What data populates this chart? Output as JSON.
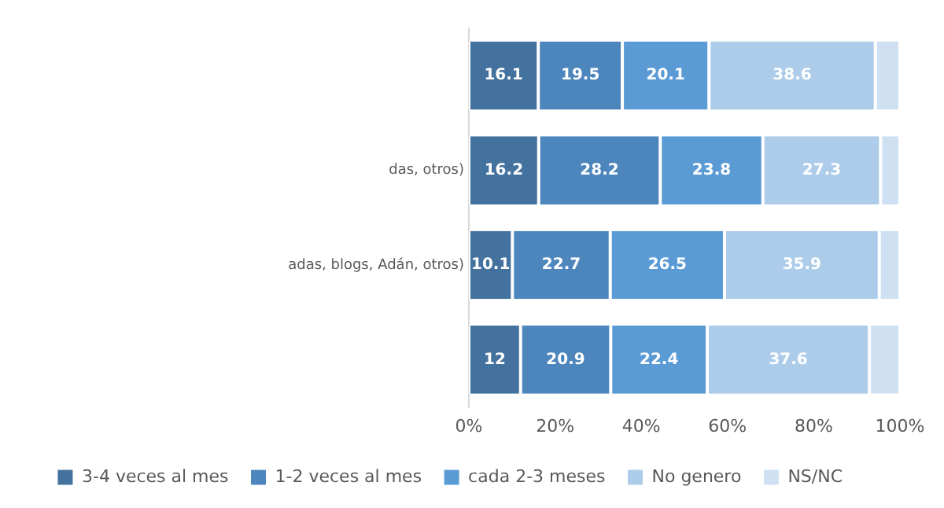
{
  "chart_data": {
    "type": "bar",
    "orientation": "horizontal",
    "stacked": true,
    "categories": [
      null,
      "das, otros)",
      "adas, blogs, Adán, otros)",
      null
    ],
    "series": [
      {
        "name": "3-4 veces al mes",
        "color": "#44729f",
        "values": [
          16.1,
          16.2,
          10.1,
          12
        ],
        "value_labels": [
          "16.1",
          "16.2",
          "10.1",
          "12"
        ]
      },
      {
        "name": "1-2 veces al mes",
        "color": "#4d86bd",
        "values": [
          19.5,
          28.2,
          22.7,
          20.9
        ],
        "value_labels": [
          "19.5",
          "28.2",
          "22.7",
          "20.9"
        ]
      },
      {
        "name": "cada 2-3 meses",
        "color": "#5b9bd5",
        "values": [
          20.1,
          23.8,
          26.5,
          22.4
        ],
        "value_labels": [
          "20.1",
          "23.8",
          "26.5",
          "22.4"
        ]
      },
      {
        "name": "No genero",
        "color": "#acccea",
        "values": [
          38.6,
          27.3,
          35.9,
          37.6
        ],
        "value_labels": [
          "38.6",
          "27.3",
          "35.9",
          "37.6"
        ]
      },
      {
        "name": "NS/NC",
        "color": "#cfe0f3",
        "values": [
          5.7,
          4.5,
          4.8,
          7.1
        ]
      }
    ],
    "xlim": [
      0,
      100
    ],
    "xticks": [
      {
        "value": 0,
        "label": "0%"
      },
      {
        "value": 20,
        "label": "20%"
      },
      {
        "value": 40,
        "label": "40%"
      },
      {
        "value": 60,
        "label": "60%"
      },
      {
        "value": 80,
        "label": "80%"
      },
      {
        "value": 100,
        "label": "100%"
      }
    ],
    "grid": false,
    "legend": "bottom"
  }
}
